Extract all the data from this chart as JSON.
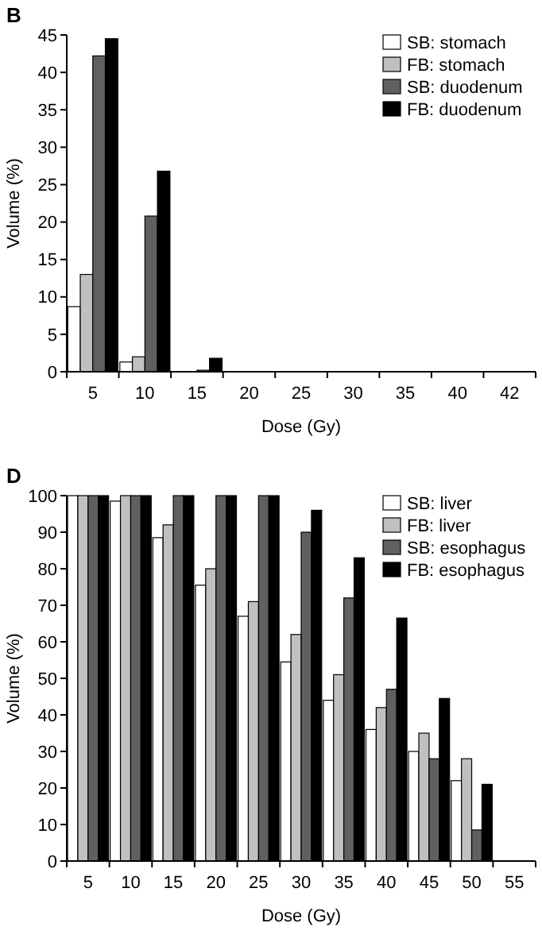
{
  "chart_data": [
    {
      "type": "bar",
      "title": "B",
      "xlabel": "Dose (Gy)",
      "ylabel": "Volume (%)",
      "categories": [
        "5",
        "10",
        "15",
        "20",
        "25",
        "30",
        "35",
        "40",
        "42"
      ],
      "series": [
        {
          "name": "SB: stomach",
          "color": "#ffffff",
          "values": [
            8.7,
            1.3,
            0,
            0,
            0,
            0,
            0,
            0,
            0
          ]
        },
        {
          "name": "FB: stomach",
          "color": "#c0c0c0",
          "values": [
            13,
            2,
            0,
            0,
            0,
            0,
            0,
            0,
            0
          ]
        },
        {
          "name": "SB: duodenum",
          "color": "#606060",
          "values": [
            42.2,
            20.8,
            0.2,
            0,
            0,
            0,
            0,
            0,
            0
          ]
        },
        {
          "name": "FB: duodenum",
          "color": "#000000",
          "values": [
            44.5,
            26.8,
            1.8,
            0,
            0,
            0,
            0,
            0,
            0
          ]
        }
      ],
      "ylim": [
        0,
        45
      ],
      "yticks": [
        0,
        5,
        10,
        15,
        20,
        25,
        30,
        35,
        40,
        45
      ],
      "legend": "top right"
    },
    {
      "type": "bar",
      "title": "D",
      "xlabel": "Dose (Gy)",
      "ylabel": "Volume (%)",
      "categories": [
        "5",
        "10",
        "15",
        "20",
        "25",
        "30",
        "35",
        "40",
        "45",
        "50",
        "55"
      ],
      "series": [
        {
          "name": "SB: liver",
          "color": "#ffffff",
          "values": [
            100,
            98.5,
            88.5,
            75.5,
            67,
            54.5,
            44,
            36,
            30,
            22,
            0
          ]
        },
        {
          "name": "FB: liver",
          "color": "#c0c0c0",
          "values": [
            100,
            100,
            92,
            80,
            71,
            62,
            51,
            42,
            35,
            28,
            0
          ]
        },
        {
          "name": "SB: esophagus",
          "color": "#606060",
          "values": [
            100,
            100,
            100,
            100,
            100,
            90,
            72,
            47,
            28,
            8.5,
            0
          ]
        },
        {
          "name": "FB: esophagus",
          "color": "#000000",
          "values": [
            100,
            100,
            100,
            100,
            100,
            96,
            83,
            66.5,
            44.5,
            21,
            0
          ]
        }
      ],
      "ylim": [
        0,
        100
      ],
      "yticks": [
        0,
        10,
        20,
        30,
        40,
        50,
        60,
        70,
        80,
        90,
        100
      ],
      "legend": "top right"
    }
  ]
}
